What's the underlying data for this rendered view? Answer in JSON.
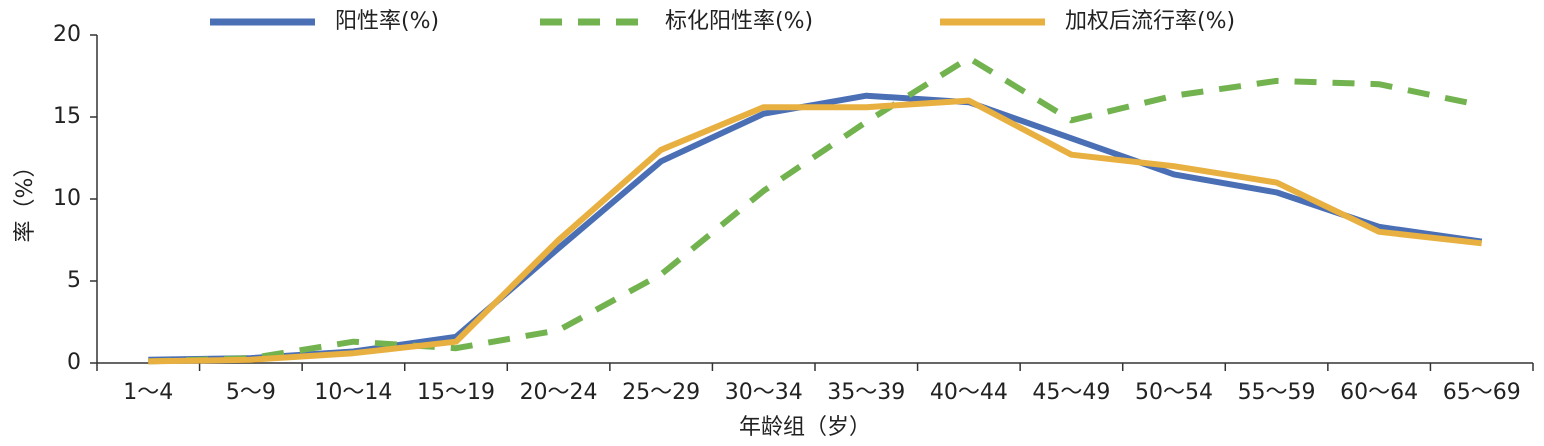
{
  "chart_data": {
    "type": "line",
    "xlabel": "年龄组（岁）",
    "ylabel": "率（%）",
    "categories": [
      "1～4",
      "5～9",
      "10～14",
      "15～19",
      "20～24",
      "25～29",
      "30～34",
      "35～39",
      "40～44",
      "45～49",
      "50～54",
      "55～59",
      "60～64",
      "65～69"
    ],
    "series": [
      {
        "name": "阳性率(%)",
        "color": "#4a6fb5",
        "line_style": "solid",
        "values": [
          0.2,
          0.3,
          0.7,
          1.6,
          7.0,
          12.3,
          15.2,
          16.3,
          15.9,
          13.7,
          11.5,
          10.4,
          8.3,
          7.4
        ]
      },
      {
        "name": "标化阳性率(%)",
        "color": "#72b34f",
        "line_style": "dashed",
        "values": [
          0.1,
          0.3,
          1.3,
          0.9,
          2.0,
          5.4,
          10.5,
          14.7,
          18.6,
          14.8,
          16.3,
          17.2,
          17.0,
          15.7
        ]
      },
      {
        "name": "加权后流行率(%)",
        "color": "#e8b040",
        "line_style": "solid",
        "values": [
          0.1,
          0.2,
          0.6,
          1.3,
          7.5,
          13.0,
          15.6,
          15.6,
          16.0,
          12.7,
          12.0,
          11.0,
          8.0,
          7.3
        ]
      }
    ],
    "ylim": [
      0,
      20
    ],
    "yticks": [
      0,
      5,
      10,
      15,
      20
    ],
    "grid": false
  }
}
